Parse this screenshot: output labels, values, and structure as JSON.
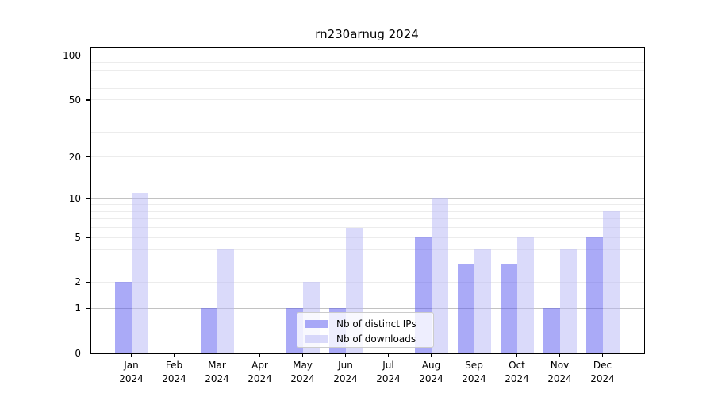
{
  "chart_data": {
    "type": "bar",
    "title": "rn230arnug 2024",
    "scale": "log1p",
    "grid": "on",
    "legend_position": "lower-center-inside",
    "categories": [
      {
        "month": "Jan",
        "year": "2024"
      },
      {
        "month": "Feb",
        "year": "2024"
      },
      {
        "month": "Mar",
        "year": "2024"
      },
      {
        "month": "Apr",
        "year": "2024"
      },
      {
        "month": "May",
        "year": "2024"
      },
      {
        "month": "Jun",
        "year": "2024"
      },
      {
        "month": "Jul",
        "year": "2024"
      },
      {
        "month": "Aug",
        "year": "2024"
      },
      {
        "month": "Sep",
        "year": "2024"
      },
      {
        "month": "Oct",
        "year": "2024"
      },
      {
        "month": "Nov",
        "year": "2024"
      },
      {
        "month": "Dec",
        "year": "2024"
      }
    ],
    "series": [
      {
        "key": "distinct-ips",
        "name": "Nb of distinct IPs",
        "color": "rgba(85,85,240,0.5)",
        "values": [
          2,
          0,
          1,
          0,
          1,
          1,
          0,
          5,
          3,
          3,
          1,
          5
        ]
      },
      {
        "key": "downloads",
        "name": "Nb of downloads",
        "color": "rgba(182,182,245,0.5)",
        "values": [
          11,
          0,
          4,
          0,
          2,
          6,
          0,
          10,
          4,
          5,
          4,
          8
        ]
      }
    ],
    "y_axis": {
      "tick_values": [
        0,
        1,
        2,
        5,
        10,
        20,
        50,
        100
      ],
      "ylim": [
        0,
        113
      ]
    },
    "gridlines": {
      "major": [
        1,
        10,
        100
      ],
      "minor": [
        2,
        3,
        4,
        5,
        6,
        7,
        8,
        9,
        20,
        30,
        40,
        50,
        60,
        70,
        80,
        90
      ],
      "major_color": "#c2c2c2",
      "minor_color": "#ececec"
    }
  }
}
